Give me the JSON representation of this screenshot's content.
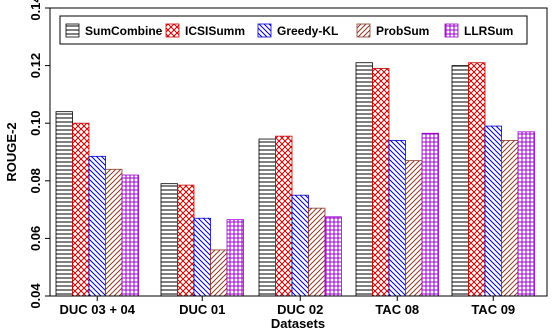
{
  "chart_data": {
    "type": "bar",
    "title": "",
    "xlabel": "Datasets",
    "ylabel": "ROUGE-2",
    "ylim": [
      0.04,
      0.14
    ],
    "yticks": [
      "0.04",
      "0.06",
      "0.08",
      "0.10",
      "0.12",
      "0.14"
    ],
    "categories": [
      "DUC 03 + 04",
      "DUC 01",
      "DUC 02",
      "TAC 08",
      "TAC 09"
    ],
    "legend_position": "top",
    "grid": false,
    "series": [
      {
        "name": "SumCombine",
        "pattern": "horizontal",
        "color": "#000000",
        "values": [
          0.104,
          0.079,
          0.0945,
          0.121,
          0.12
        ]
      },
      {
        "name": "ICSISumm",
        "pattern": "crosshatch",
        "color": "#cc0000",
        "values": [
          0.1,
          0.0785,
          0.0955,
          0.119,
          0.121
        ]
      },
      {
        "name": "Greedy-KL",
        "pattern": "backslash",
        "color": "#0000cc",
        "values": [
          0.0885,
          0.067,
          0.075,
          0.094,
          0.099
        ]
      },
      {
        "name": "ProbSum",
        "pattern": "slash",
        "color": "#8b3a2a",
        "values": [
          0.084,
          0.056,
          0.0705,
          0.087,
          0.094
        ]
      },
      {
        "name": "LLRSum",
        "pattern": "grid",
        "color": "#9900cc",
        "values": [
          0.082,
          0.0665,
          0.0675,
          0.0965,
          0.097
        ]
      }
    ]
  }
}
